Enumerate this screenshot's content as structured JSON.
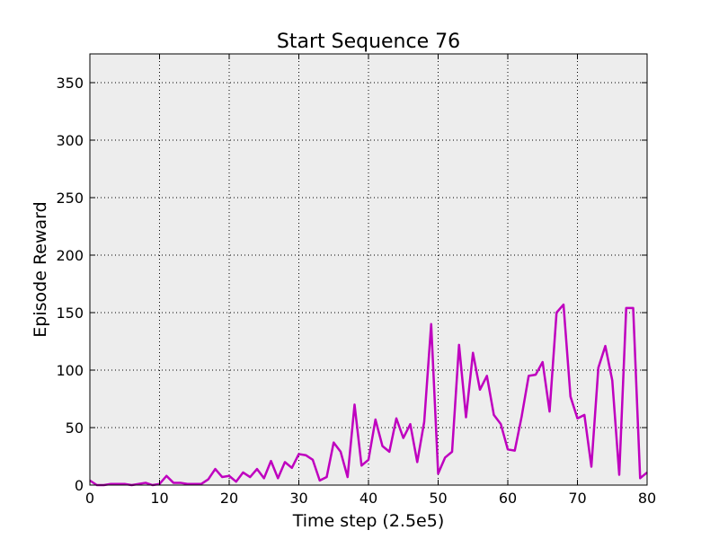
{
  "chart_data": {
    "type": "line",
    "title": "Start Sequence 76",
    "xlabel": "Time step (2.5e5)",
    "ylabel": "Episode Reward",
    "xlim": [
      0,
      80
    ],
    "ylim": [
      0,
      375
    ],
    "xticks": [
      0,
      10,
      20,
      30,
      40,
      50,
      60,
      70,
      80
    ],
    "yticks": [
      0,
      50,
      100,
      150,
      200,
      250,
      300,
      350
    ],
    "grid": true,
    "legend": "none",
    "colors": {
      "line": "#bf00bf",
      "plot_bg": "#ededed",
      "grid": "#000000"
    },
    "series": [
      {
        "x": [
          0,
          1,
          2,
          3,
          4,
          5,
          6,
          7,
          8,
          9,
          10,
          11,
          12,
          13,
          14,
          15,
          16,
          17,
          18,
          19,
          20,
          21,
          22,
          23,
          24,
          25,
          26,
          27,
          28,
          29,
          30,
          31,
          32,
          33,
          34,
          35,
          36,
          37,
          38,
          39,
          40,
          41,
          42,
          43,
          44,
          45,
          46,
          47,
          48,
          49,
          50,
          51,
          52,
          53,
          54,
          55,
          56,
          57,
          58,
          59,
          60,
          61,
          62,
          63,
          64,
          65,
          66,
          67,
          68,
          69,
          70,
          71,
          72,
          73,
          74,
          75,
          76,
          77,
          78,
          79,
          80
        ],
        "values": [
          4,
          0,
          0,
          1,
          1,
          1,
          0,
          1,
          2,
          0,
          1,
          8,
          2,
          2,
          1,
          1,
          1,
          5,
          14,
          7,
          8,
          3,
          11,
          7,
          14,
          6,
          21,
          6,
          20,
          15,
          27,
          26,
          22,
          4,
          7,
          37,
          29,
          7,
          70,
          17,
          22,
          57,
          34,
          29,
          58,
          41,
          53,
          20,
          55,
          140,
          10,
          24,
          29,
          122,
          59,
          115,
          83,
          95,
          61,
          53,
          31,
          30,
          60,
          95,
          96,
          107,
          64,
          150,
          157,
          77,
          58,
          61,
          16,
          102,
          121,
          91,
          9,
          154,
          154,
          6,
          11
        ]
      }
    ]
  }
}
